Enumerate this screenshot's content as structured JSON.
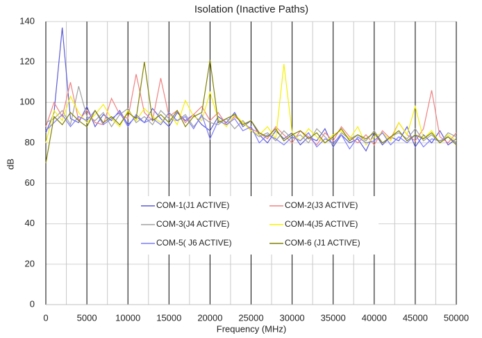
{
  "chart_data": {
    "type": "line",
    "title": "Isolation (Inactive Paths)",
    "x_label": "Frequency (MHz)",
    "y_label": "dB",
    "x": [
      0,
      1000,
      2000,
      3000,
      4000,
      5000,
      6000,
      7000,
      8000,
      9000,
      10000,
      11000,
      12000,
      13000,
      14000,
      15000,
      16000,
      17000,
      18000,
      19000,
      20000,
      21000,
      22000,
      23000,
      24000,
      25000,
      26000,
      27000,
      28000,
      29000,
      30000,
      31000,
      32000,
      33000,
      34000,
      35000,
      36000,
      37000,
      38000,
      39000,
      40000,
      41000,
      42000,
      43000,
      44000,
      45000,
      46000,
      47000,
      48000,
      49000,
      50000
    ],
    "series": [
      {
        "name": "COM-1(J1 ACTIVE)",
        "color": "#5b5bd6",
        "values": [
          85,
          95,
          137,
          92,
          90,
          98,
          88,
          94,
          91,
          96,
          89,
          93,
          90,
          97,
          92,
          88,
          95,
          91,
          94,
          89,
          86,
          93,
          90,
          95,
          88,
          91,
          84,
          80,
          86,
          82,
          85,
          79,
          83,
          81,
          87,
          78,
          84,
          80,
          82,
          76,
          85,
          79,
          83,
          81,
          88,
          78,
          84,
          80,
          86,
          79,
          82
        ]
      },
      {
        "name": "COM-2(J3 ACTIVE)",
        "color": "#f08080",
        "values": [
          88,
          100,
          93,
          110,
          91,
          96,
          90,
          89,
          102,
          94,
          92,
          114,
          95,
          91,
          112,
          93,
          96,
          90,
          94,
          98,
          91,
          95,
          89,
          93,
          90,
          87,
          85,
          82,
          88,
          84,
          80,
          86,
          83,
          79,
          85,
          81,
          88,
          83,
          80,
          84,
          79,
          86,
          82,
          90,
          84,
          81,
          87,
          106,
          83,
          80,
          85
        ]
      },
      {
        "name": "COM-3(J4 ACTIVE)",
        "color": "#a0a0a0",
        "values": [
          90,
          92,
          96,
          89,
          108,
          93,
          91,
          95,
          88,
          94,
          97,
          90,
          93,
          89,
          96,
          92,
          91,
          94,
          88,
          93,
          90,
          89,
          92,
          87,
          91,
          86,
          83,
          85,
          81,
          86,
          82,
          84,
          80,
          87,
          83,
          79,
          85,
          82,
          84,
          81,
          86,
          80,
          83,
          85,
          82,
          87,
          81,
          84,
          80,
          85,
          83
        ]
      },
      {
        "name": "COM-4(J5 ACTIVE)",
        "color": "#f5f000",
        "values": [
          80,
          96,
          91,
          103,
          95,
          90,
          94,
          99,
          92,
          88,
          96,
          91,
          97,
          93,
          90,
          95,
          89,
          101,
          93,
          91,
          105,
          92,
          88,
          94,
          90,
          86,
          84,
          88,
          82,
          119,
          85,
          81,
          87,
          83,
          80,
          84,
          86,
          82,
          88,
          79,
          83,
          85,
          81,
          90,
          84,
          98,
          82,
          86,
          80,
          84,
          81
        ]
      },
      {
        "name": "COM-5( J6 ACTIVE)",
        "color": "#7b7bff",
        "values": [
          86,
          90,
          94,
          88,
          93,
          91,
          96,
          89,
          92,
          95,
          88,
          94,
          90,
          92,
          89,
          95,
          91,
          93,
          87,
          94,
          82,
          91,
          89,
          92,
          86,
          88,
          80,
          84,
          82,
          79,
          83,
          81,
          85,
          78,
          82,
          80,
          84,
          77,
          83,
          80,
          81,
          85,
          79,
          83,
          80,
          84,
          78,
          82,
          81,
          83,
          80
        ]
      },
      {
        "name": "COM-6 (J1 ACTIVE)",
        "color": "#808000",
        "values": [
          70,
          93,
          89,
          95,
          91,
          88,
          96,
          90,
          93,
          89,
          95,
          92,
          120,
          91,
          94,
          90,
          96,
          88,
          93,
          95,
          121,
          90,
          92,
          94,
          89,
          91,
          85,
          83,
          87,
          81,
          84,
          86,
          82,
          85,
          80,
          83,
          87,
          81,
          84,
          82,
          85,
          80,
          83,
          86,
          81,
          84,
          82,
          85,
          80,
          83,
          79
        ]
      }
    ],
    "xlim": [
      0,
      50000
    ],
    "xticks": [
      0,
      5000,
      10000,
      15000,
      20000,
      25000,
      30000,
      35000,
      40000,
      45000,
      50000
    ],
    "ylim": [
      0,
      140
    ],
    "yticks": [
      0,
      20,
      40,
      60,
      80,
      100,
      120,
      140
    ],
    "grid": true,
    "legend": "center"
  }
}
